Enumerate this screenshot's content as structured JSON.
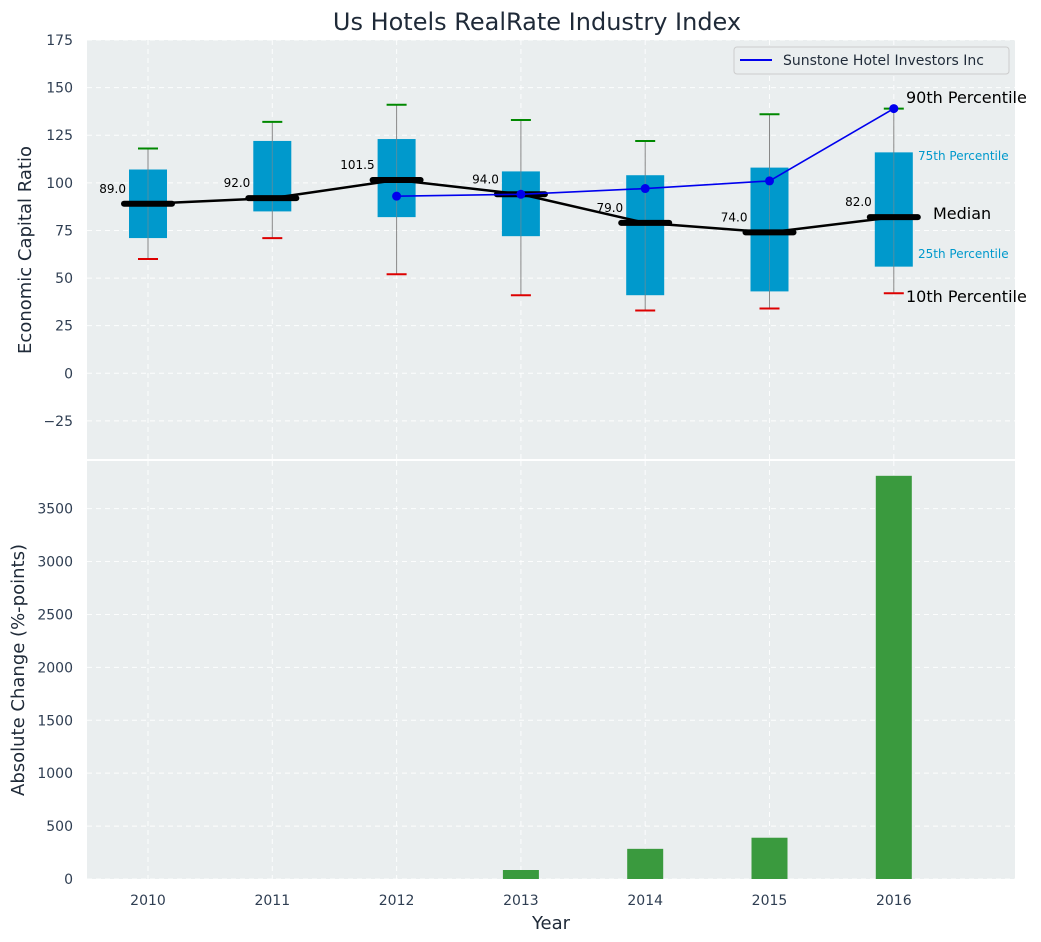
{
  "title": "Us Hotels RealRate Industry Index",
  "colors": {
    "plot_bg": "#eaeeef",
    "box": "#0099cc",
    "median": "#000000",
    "series": "#0000ee",
    "p90_cap": "#008800",
    "p10_cap": "#dd0000",
    "whisker": "#888888",
    "bar": "#3a9a3e",
    "label_75_25": "#0099cc"
  },
  "chart_data": [
    {
      "type": "box",
      "ylabel": "Economic Capital Ratio",
      "ylim": [
        -45,
        175
      ],
      "yticks": [
        -25,
        0,
        25,
        50,
        75,
        100,
        125,
        150,
        175
      ],
      "ytick_labels": [
        "−25",
        "0",
        "25",
        "50",
        "75",
        "100",
        "125",
        "150",
        "175"
      ],
      "categories": [
        "2010",
        "2011",
        "2012",
        "2013",
        "2014",
        "2015",
        "2016"
      ],
      "p10": [
        60,
        71,
        52,
        41,
        33,
        34,
        42
      ],
      "p25": [
        71,
        85,
        82,
        72,
        41,
        43,
        56
      ],
      "median": [
        89,
        92,
        101.5,
        94,
        79,
        74,
        82
      ],
      "p75": [
        107,
        122,
        123,
        106,
        104,
        108,
        116
      ],
      "p90": [
        118,
        132,
        141,
        133,
        122,
        136,
        139
      ],
      "median_labels": [
        "89.0",
        "92.0",
        "101.5",
        "94.0",
        "79.0",
        "74.0",
        "82.0"
      ],
      "series": [
        {
          "name": "Sunstone Hotel Investors Inc",
          "x": [
            "2012",
            "2013",
            "2014",
            "2015",
            "2016"
          ],
          "values": [
            93,
            94,
            97,
            101,
            139
          ]
        }
      ],
      "legend": {
        "label": "Sunstone Hotel Investors Inc",
        "position": "top-right"
      },
      "annotations": {
        "p90": "90th Percentile",
        "p75": "75th Percentile",
        "median": "Median",
        "p25": "25th Percentile",
        "p10": "10th Percentile"
      },
      "grid": true
    },
    {
      "type": "bar",
      "xlabel": "Year",
      "ylabel": "Absolute Change (%-points)",
      "ylim": [
        0,
        3950
      ],
      "yticks": [
        0,
        500,
        1000,
        1500,
        2000,
        2500,
        3000,
        3500
      ],
      "categories": [
        "2010",
        "2011",
        "2012",
        "2013",
        "2014",
        "2015",
        "2016"
      ],
      "values": [
        0,
        0,
        0,
        85,
        285,
        390,
        3810
      ],
      "grid": true
    }
  ]
}
